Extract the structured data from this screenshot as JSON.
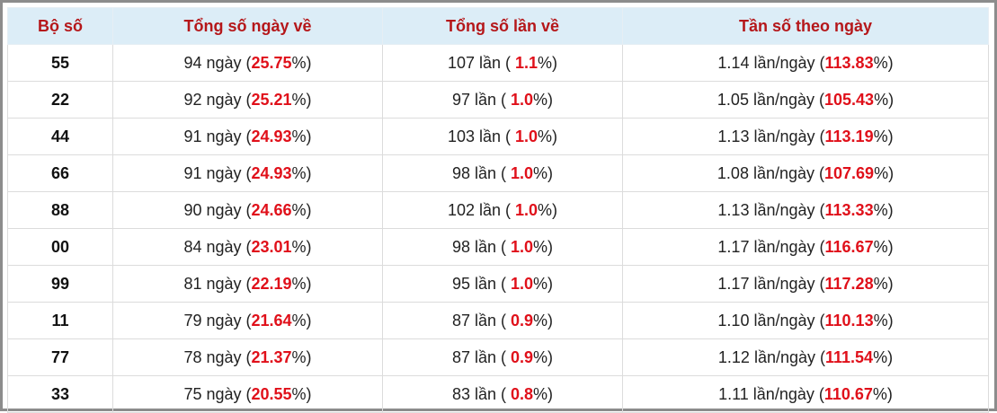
{
  "table": {
    "header": [
      "Bộ số",
      "Tổng số ngày về",
      "Tổng số lần về",
      "Tần số theo ngày"
    ],
    "rows": [
      [
        "55",
        [
          "94 ngày (",
          "25.75",
          "%)"
        ],
        [
          "107 lần ( ",
          "1.1",
          "%)"
        ],
        [
          "1.14 lần/ngày (",
          "113.83",
          "%)"
        ]
      ],
      [
        "22",
        [
          "92 ngày (",
          "25.21",
          "%)"
        ],
        [
          "97 lần ( ",
          "1.0",
          "%)"
        ],
        [
          "1.05 lần/ngày (",
          "105.43",
          "%)"
        ]
      ],
      [
        "44",
        [
          "91 ngày (",
          "24.93",
          "%)"
        ],
        [
          "103 lần ( ",
          "1.0",
          "%)"
        ],
        [
          "1.13 lần/ngày (",
          "113.19",
          "%)"
        ]
      ],
      [
        "66",
        [
          "91 ngày (",
          "24.93",
          "%)"
        ],
        [
          "98 lần ( ",
          "1.0",
          "%)"
        ],
        [
          "1.08 lần/ngày (",
          "107.69",
          "%)"
        ]
      ],
      [
        "88",
        [
          "90 ngày (",
          "24.66",
          "%)"
        ],
        [
          "102 lần ( ",
          "1.0",
          "%)"
        ],
        [
          "1.13 lần/ngày (",
          "113.33",
          "%)"
        ]
      ],
      [
        "00",
        [
          "84 ngày (",
          "23.01",
          "%)"
        ],
        [
          "98 lần ( ",
          "1.0",
          "%)"
        ],
        [
          "1.17 lần/ngày (",
          "116.67",
          "%)"
        ]
      ],
      [
        "99",
        [
          "81 ngày (",
          "22.19",
          "%)"
        ],
        [
          "95 lần ( ",
          "1.0",
          "%)"
        ],
        [
          "1.17 lần/ngày (",
          "117.28",
          "%)"
        ]
      ],
      [
        "11",
        [
          "79 ngày (",
          "21.64",
          "%)"
        ],
        [
          "87 lần ( ",
          "0.9",
          "%)"
        ],
        [
          "1.10 lần/ngày (",
          "110.13",
          "%)"
        ]
      ],
      [
        "77",
        [
          "78 ngày (",
          "21.37",
          "%)"
        ],
        [
          "87 lần ( ",
          "0.9",
          "%)"
        ],
        [
          "1.12 lần/ngày (",
          "111.54",
          "%)"
        ]
      ],
      [
        "33",
        [
          "75 ngày (",
          "20.55",
          "%)"
        ],
        [
          "83 lần ( ",
          "0.8",
          "%)"
        ],
        [
          "1.11 lần/ngày (",
          "110.67",
          "%)"
        ]
      ]
    ]
  }
}
